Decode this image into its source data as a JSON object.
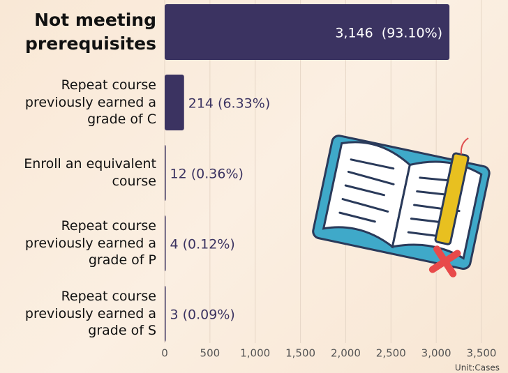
{
  "chart_data": {
    "type": "bar",
    "orientation": "horizontal",
    "categories": [
      "Not meeting prerequisites",
      "Repeat course previously earned a grade of C",
      "Enroll an equivalent course",
      "Repeat course previously earned a grade of P",
      "Repeat course previously earned a grade of S"
    ],
    "values": [
      3146,
      214,
      12,
      4,
      3
    ],
    "value_labels": [
      "3,146  (93.10%)",
      "214 (6.33%)",
      "12 (0.36%)",
      "4 (0.12%)",
      "3 (0.09%)"
    ],
    "color": "#3b3361",
    "xlim": [
      0,
      3500
    ],
    "xticks": [
      0,
      500,
      {
        "value": 1000,
        "label": "1,000"
      },
      {
        "value": 1500,
        "label": "1,500"
      },
      {
        "value": 2000,
        "label": "2,000"
      },
      {
        "value": 2500,
        "label": "2,500"
      },
      {
        "value": 3000,
        "label": "3,000"
      },
      {
        "value": 3500,
        "label": "3,500"
      }
    ],
    "grid": true,
    "unit_label": "Unit:Cases"
  }
}
